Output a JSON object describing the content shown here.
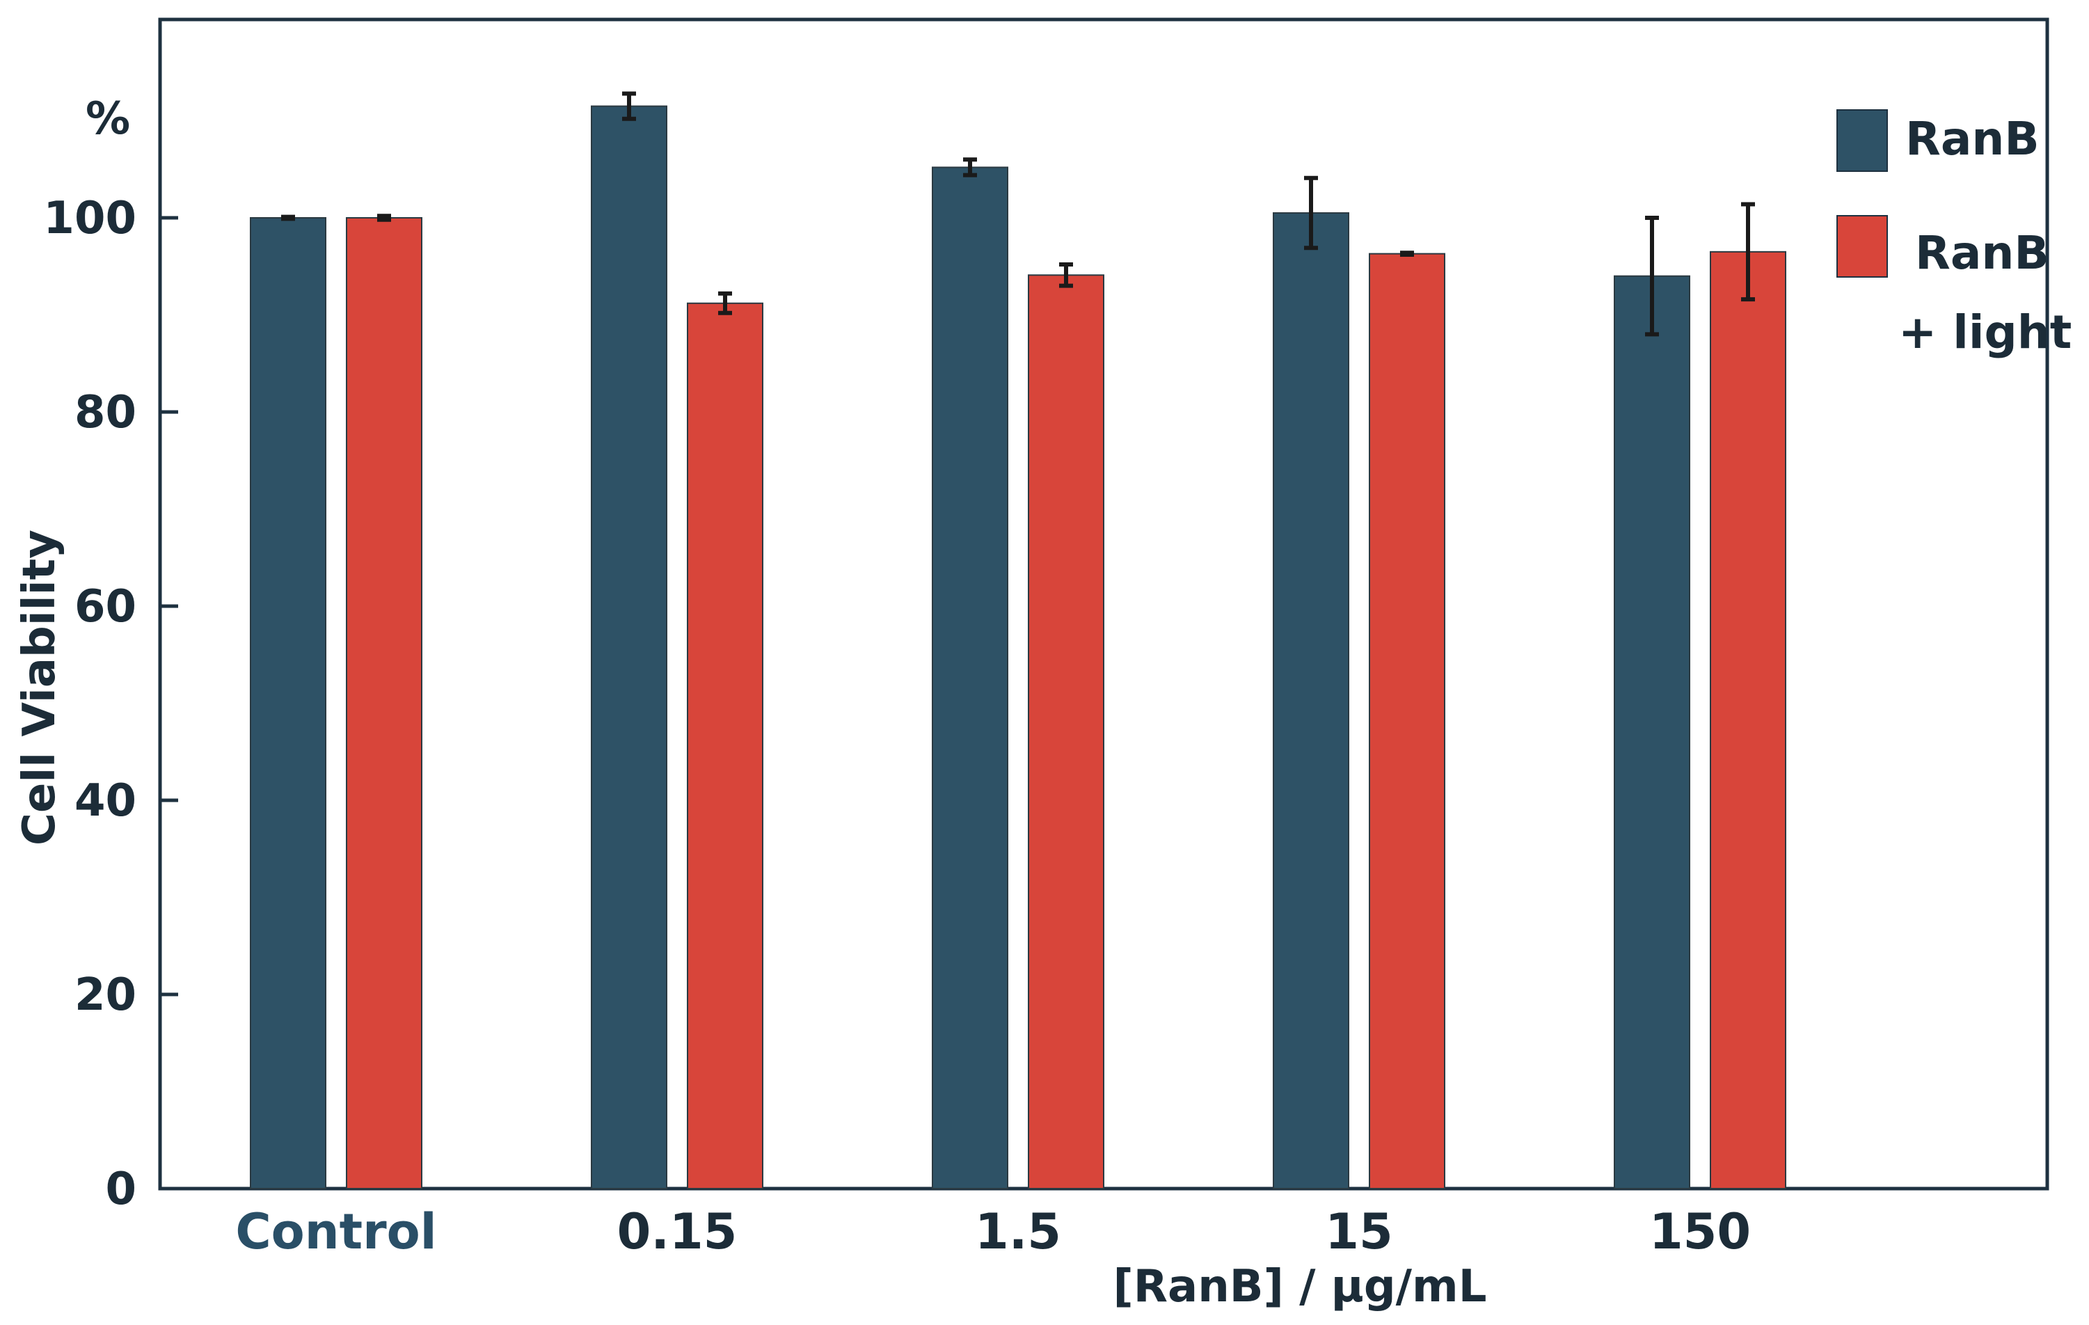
{
  "chart_data": {
    "type": "bar",
    "title": "",
    "xlabel": "[RanB] / μg/mL",
    "ylabel": "Cell Viability",
    "y_unit_label": "%",
    "categories": [
      "Control",
      "0.15",
      "1.5",
      "15",
      "150"
    ],
    "series": [
      {
        "name": "RanB",
        "color": "#2e5266",
        "values": [
          100,
          111.5,
          105.2,
          100.5,
          94.0
        ],
        "errors": [
          0.1,
          1.3,
          0.8,
          3.6,
          6.0
        ]
      },
      {
        "name": "RanB + light",
        "legend_lines": [
          "RanB",
          "+ light"
        ],
        "color": "#d8453a",
        "values": [
          100,
          91.2,
          94.1,
          96.3,
          96.5
        ],
        "errors": [
          0.2,
          1.0,
          1.1,
          0.1,
          4.9
        ]
      }
    ],
    "ylim": [
      0,
      120
    ],
    "yticks": [
      0,
      20,
      40,
      60,
      80,
      100
    ],
    "grid": false,
    "legend": "top-right"
  }
}
